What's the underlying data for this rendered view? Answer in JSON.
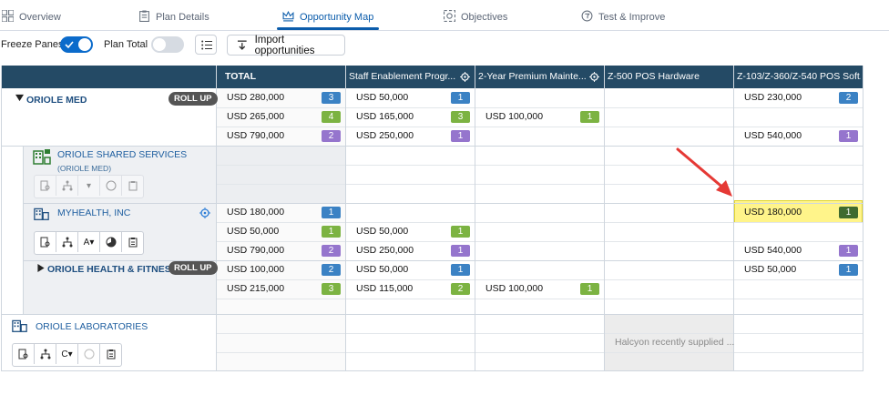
{
  "tabs": [
    {
      "label": "Overview",
      "icon": "grid-icon",
      "active": false
    },
    {
      "label": "Plan Details",
      "icon": "clipboard-icon",
      "active": false
    },
    {
      "label": "Opportunity Map",
      "icon": "crown-icon",
      "active": true
    },
    {
      "label": "Objectives",
      "icon": "target-icon",
      "active": false
    },
    {
      "label": "Test & Improve",
      "icon": "flask-icon",
      "active": false
    }
  ],
  "toolbar": {
    "freeze_panes_label": "Freeze Panes",
    "freeze_panes_on": true,
    "plan_total_label": "Plan Total",
    "plan_total_on": false,
    "import_label": "Import opportunities"
  },
  "columns": {
    "total": "TOTAL",
    "c1": "Staff Enablement Progr...",
    "c2": "2-Year Premium Mainte...",
    "c3": "Z-500 POS Hardware",
    "c4": "Z-103/Z-360/Z-540 POS Soft..."
  },
  "accounts": {
    "a1": {
      "name": "ORIOLE MED",
      "rollup": "ROLL UP"
    },
    "a2": {
      "name": "ORIOLE SHARED SERVICES",
      "parent": "(ORIOLE MED)"
    },
    "a3": {
      "name": "MYHEALTH, INC",
      "seg_letter": "A"
    },
    "a4": {
      "name": "ORIOLE HEALTH & FITNESS",
      "rollup": "ROLL UP"
    },
    "a5": {
      "name": "ORIOLE LABORATORIES",
      "seg_letter": "C"
    }
  },
  "cells": {
    "r1_total": {
      "value": "USD 280,000",
      "count": "3"
    },
    "r2_total": {
      "value": "USD 265,000",
      "count": "4"
    },
    "r3_total": {
      "value": "USD 790,000",
      "count": "2"
    },
    "r1_c1": {
      "value": "USD 50,000",
      "count": "1"
    },
    "r2_c1": {
      "value": "USD 165,000",
      "count": "3"
    },
    "r3_c1": {
      "value": "USD 250,000",
      "count": "1"
    },
    "r2_c2": {
      "value": "USD 100,000",
      "count": "1"
    },
    "r1_c4": {
      "value": "USD 230,000",
      "count": "2"
    },
    "r3_c4": {
      "value": "USD 540,000",
      "count": "1"
    },
    "r7_total": {
      "value": "USD 180,000",
      "count": "1"
    },
    "r8_total": {
      "value": "USD 50,000",
      "count": "1"
    },
    "r9_total": {
      "value": "USD 790,000",
      "count": "2"
    },
    "r8_c1": {
      "value": "USD 50,000",
      "count": "1"
    },
    "r9_c1": {
      "value": "USD 250,000",
      "count": "1"
    },
    "r7_c4": {
      "value": "USD 180,000",
      "count": "1"
    },
    "r9_c4": {
      "value": "USD 540,000",
      "count": "1"
    },
    "r10_total": {
      "value": "USD 100,000",
      "count": "2"
    },
    "r11_total": {
      "value": "USD 215,000",
      "count": "3"
    },
    "r10_c1": {
      "value": "USD 50,000",
      "count": "1"
    },
    "r11_c1": {
      "value": "USD 115,000",
      "count": "2"
    },
    "r11_c2": {
      "value": "USD 100,000",
      "count": "1"
    },
    "r10_c4": {
      "value": "USD 50,000",
      "count": "1"
    }
  },
  "note": "Halcyon recently supplied ...",
  "colors": {
    "header": "#244a65",
    "highlight": "#fff48a",
    "arrow": "#e53935",
    "accent": "#0b5cab"
  }
}
